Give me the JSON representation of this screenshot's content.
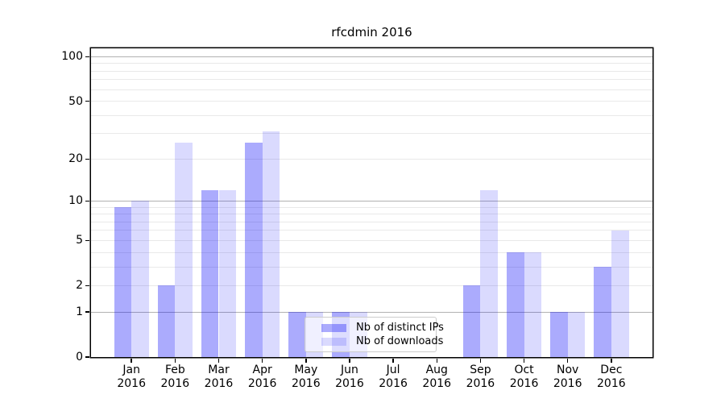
{
  "chart_data": {
    "type": "bar",
    "title": "rfcdmin 2016",
    "categories": [
      "Jan 2016",
      "Feb 2016",
      "Mar 2016",
      "Apr 2016",
      "May 2016",
      "Jun 2016",
      "Jul 2016",
      "Aug 2016",
      "Sep 2016",
      "Oct 2016",
      "Nov 2016",
      "Dec 2016"
    ],
    "series": [
      {
        "name": "Nb of distinct IPs",
        "color_hex": "#aaaafa",
        "fill": "rgba(0,0,250,0.33)",
        "values": [
          9,
          2,
          12,
          26,
          1,
          1,
          0,
          0,
          2,
          4,
          1,
          3
        ]
      },
      {
        "name": "Nb of downloads",
        "color_hex": "#dbdbfa",
        "fill": "rgba(0,0,250,0.145)",
        "values": [
          10,
          26,
          12,
          31,
          1,
          1,
          0,
          0,
          12,
          4,
          1,
          6
        ]
      }
    ],
    "xlabel": "",
    "ylabel": "",
    "yscale": "log1p",
    "ylim": [
      0,
      114
    ],
    "yticks": [
      0,
      1,
      2,
      5,
      10,
      20,
      50,
      100
    ],
    "major_gridlines": [
      1,
      10,
      100
    ],
    "minor_gridlines": [
      2,
      3,
      4,
      5,
      6,
      7,
      8,
      9,
      20,
      30,
      40,
      50,
      60,
      70,
      80,
      90
    ],
    "grid": true,
    "legend_position": "lower-center-inside"
  },
  "colors": {
    "background": "#ffffff",
    "spine": "#000000",
    "major_grid": "#b2b2b2",
    "minor_grid": "#e9e9e9",
    "legend_border": "#cccccc"
  }
}
